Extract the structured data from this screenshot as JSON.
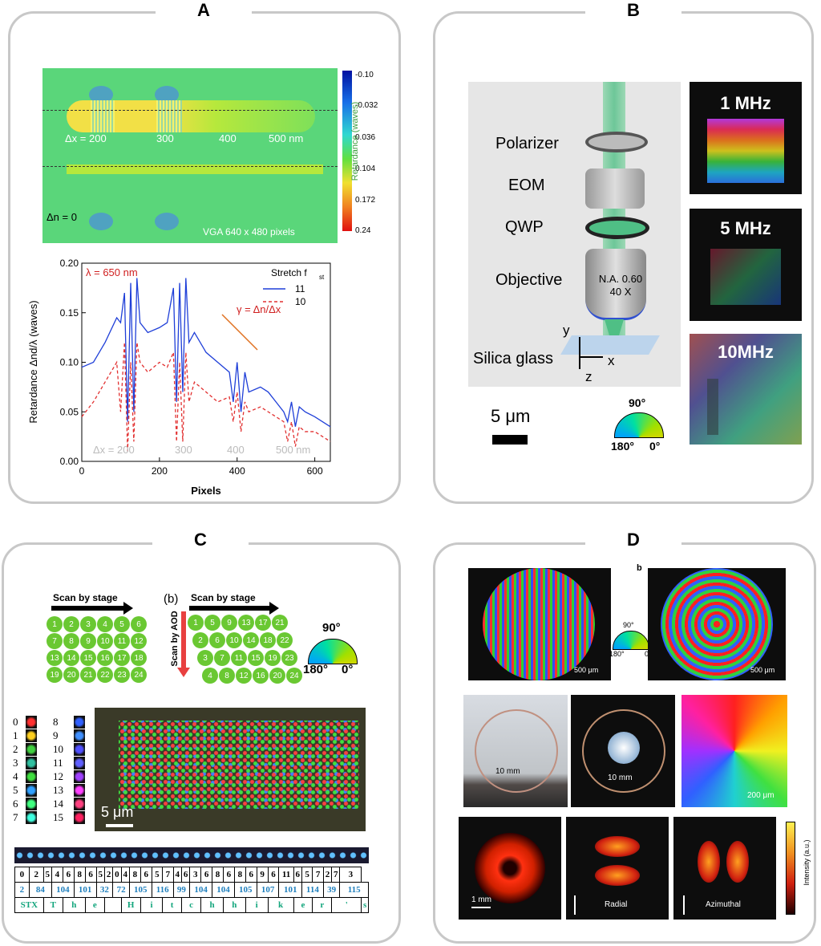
{
  "panels": {
    "a": "A",
    "b": "B",
    "c": "C",
    "d": "D"
  },
  "A": {
    "map": {
      "labels": [
        "Δx = 200",
        "300",
        "400",
        "500 nm"
      ],
      "dn": "Δn = 0",
      "vga": "VGA 640 x 480 pixels",
      "colorbar_title": "Retardance (waves)",
      "colorbar_ticks": [
        "-0.10",
        "-0.032",
        "0.036",
        "0.104",
        "0.172",
        "0.24"
      ]
    },
    "chart_data": {
      "type": "line",
      "xlabel": "Pixels",
      "ylabel": "Retardance Δnd/λ (waves)",
      "xlim": [
        0,
        640
      ],
      "ylim": [
        0,
        0.2
      ],
      "xticks": [
        "0",
        "200",
        "400",
        "600"
      ],
      "yticks": [
        "0.00",
        "0.05",
        "0.10",
        "0.15",
        "0.20"
      ],
      "annotation_lambda": "λ = 650 nm",
      "annotation_gamma": "γ = Δn/Δx",
      "legend_title": "Stretch f",
      "legend_sub": "st",
      "legend_placement": "top-right",
      "bottom_labels": [
        "Δx = 200",
        "300",
        "400",
        "500 nm"
      ],
      "series": [
        {
          "name": "11",
          "style": "solid",
          "color": "#1f3fd8",
          "x": [
            0,
            30,
            60,
            90,
            100,
            110,
            118,
            126,
            134,
            142,
            150,
            170,
            200,
            220,
            236,
            244,
            252,
            260,
            268,
            276,
            290,
            320,
            350,
            380,
            390,
            400,
            410,
            420,
            430,
            460,
            480,
            500,
            520,
            530,
            540,
            550,
            560,
            575,
            600,
            640
          ],
          "y": [
            0.095,
            0.1,
            0.12,
            0.145,
            0.14,
            0.17,
            0.04,
            0.18,
            0.05,
            0.185,
            0.14,
            0.13,
            0.135,
            0.14,
            0.175,
            0.06,
            0.18,
            0.07,
            0.185,
            0.12,
            0.13,
            0.11,
            0.1,
            0.09,
            0.06,
            0.1,
            0.05,
            0.09,
            0.07,
            0.075,
            0.07,
            0.06,
            0.05,
            0.04,
            0.06,
            0.035,
            0.055,
            0.05,
            0.045,
            0.035
          ]
        },
        {
          "name": "10",
          "style": "dashed",
          "color": "#e23030",
          "x": [
            0,
            30,
            60,
            90,
            100,
            110,
            118,
            126,
            134,
            142,
            150,
            170,
            200,
            220,
            236,
            244,
            252,
            260,
            268,
            276,
            290,
            320,
            350,
            380,
            390,
            400,
            410,
            420,
            430,
            460,
            480,
            500,
            520,
            530,
            540,
            550,
            560,
            575,
            600,
            640
          ],
          "y": [
            0.045,
            0.06,
            0.08,
            0.1,
            0.05,
            0.12,
            0.01,
            0.1,
            0.02,
            0.12,
            0.1,
            0.09,
            0.1,
            0.095,
            0.11,
            0.02,
            0.1,
            0.02,
            0.11,
            0.06,
            0.08,
            0.07,
            0.06,
            0.065,
            0.04,
            0.07,
            0.03,
            0.06,
            0.05,
            0.055,
            0.05,
            0.045,
            0.04,
            0.02,
            0.04,
            0.015,
            0.035,
            0.03,
            0.03,
            0.02
          ]
        }
      ]
    }
  },
  "B": {
    "labels": [
      "Polarizer",
      "EOM",
      "QWP",
      "Objective",
      "Silica glass"
    ],
    "objective_text1": "N.A. 0.60",
    "objective_text2": "40 X",
    "axis_y": "y",
    "axis_x": "x",
    "axis_z": "z",
    "scalebar": "5 μm",
    "wheel_top": "90°",
    "wheel_left": "180°",
    "wheel_right": "0°",
    "freqs": [
      "1 MHz",
      "5 MHz",
      "10MHz"
    ]
  },
  "C": {
    "scan_stage": "Scan by stage",
    "scan_stage2": "Scan by stage",
    "scan_aod": "Scan by AOD",
    "b_label": "(b)",
    "wheel_top": "90°",
    "wheel_left": "180°",
    "wheel_right": "0°",
    "grid1": [
      "1",
      "2",
      "3",
      "4",
      "5",
      "6",
      "7",
      "8",
      "9",
      "10",
      "11",
      "12",
      "13",
      "14",
      "15",
      "16",
      "17",
      "18",
      "19",
      "20",
      "21",
      "22",
      "23",
      "24"
    ],
    "grid2_rows": [
      [
        "1",
        "5",
        "9",
        "13",
        "17",
        "21"
      ],
      [
        "2",
        "6",
        "10",
        "14",
        "18",
        "22"
      ],
      [
        "3",
        "7",
        "11",
        "15",
        "19",
        "23"
      ],
      [
        "4",
        "8",
        "12",
        "16",
        "20",
        "24"
      ]
    ],
    "level_left": [
      "0",
      "1",
      "2",
      "3",
      "4",
      "5",
      "6",
      "7"
    ],
    "level_right": [
      "8",
      "9",
      "10",
      "11",
      "12",
      "13",
      "14",
      "15"
    ],
    "scalebar": "5 μm",
    "table_r1": [
      "0",
      "2",
      "5",
      "4",
      "6",
      "8",
      "6",
      "5",
      "2",
      "0",
      "4",
      "8",
      "6",
      "5",
      "7",
      "4",
      "6",
      "3",
      "6",
      "8",
      "6",
      "8",
      "6",
      "9",
      "6",
      "11",
      "6",
      "5",
      "7",
      "2",
      "7",
      "3"
    ],
    "table_r2": [
      "2",
      "84",
      "104",
      "101",
      "32",
      "72",
      "105",
      "116",
      "99",
      "104",
      "104",
      "105",
      "107",
      "101",
      "114",
      "39",
      "115"
    ],
    "table_r3": [
      "STX",
      "T",
      "h",
      "e",
      "",
      "H",
      "i",
      "t",
      "c",
      "h",
      "h",
      "i",
      "k",
      "e",
      "r",
      "'",
      "s"
    ]
  },
  "D": {
    "b_label": "b",
    "scale500a": "500 μm",
    "scale500b": "500 μm",
    "wheel_top": "90°",
    "wheel_left": "180°",
    "wheel_right": "0°",
    "mm10a": "10 mm",
    "mm10b": "10 mm",
    "scale200": "200 μm",
    "scale1mm": "1 mm",
    "radial": "Radial",
    "azimuthal": "Azimuthal",
    "intensity": "Intensity (a.u.)"
  }
}
